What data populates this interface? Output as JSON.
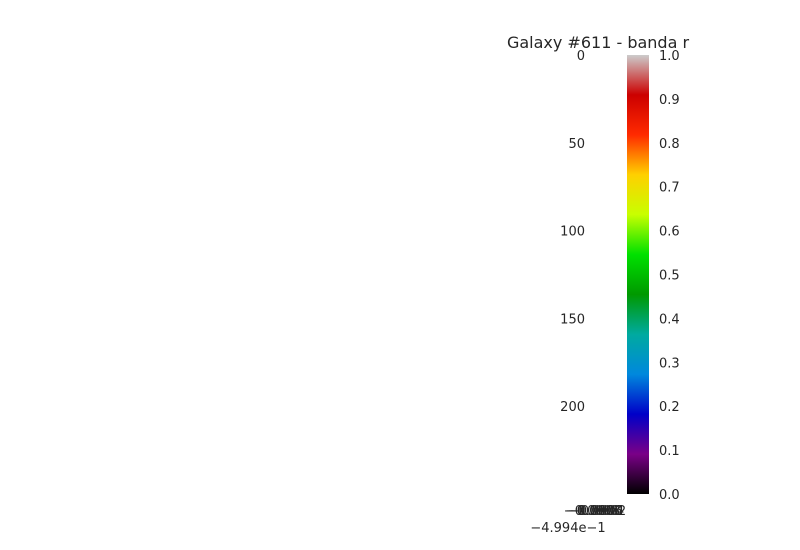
{
  "chart_data": {
    "type": "heatmap",
    "title": "Galaxy #611 - banda r",
    "xlabel": "",
    "ylabel": "",
    "ylim": [
      250,
      0
    ],
    "y_ticks": [
      "0",
      "50",
      "100",
      "150",
      "200"
    ],
    "x_ticks_overlapping": [
      "−0.0008",
      "−0.0006",
      "−0.0004",
      "−0.0002",
      "0.0000"
    ],
    "x_offset_label": "−4.994e−1",
    "grid": false,
    "colorbar": {
      "colormap": "nipy_spectral",
      "range": [
        0.0,
        1.0
      ],
      "ticks": [
        "0.0",
        "0.1",
        "0.2",
        "0.3",
        "0.4",
        "0.5",
        "0.6",
        "0.7",
        "0.8",
        "0.9",
        "1.0"
      ],
      "color_stops": [
        "#000000",
        "#7a0087",
        "#0000c8",
        "#0088dd",
        "#00aaa0",
        "#009900",
        "#00e100",
        "#c8ff00",
        "#ffd000",
        "#ff2a00",
        "#cc0000",
        "#cccccc"
      ]
    }
  }
}
